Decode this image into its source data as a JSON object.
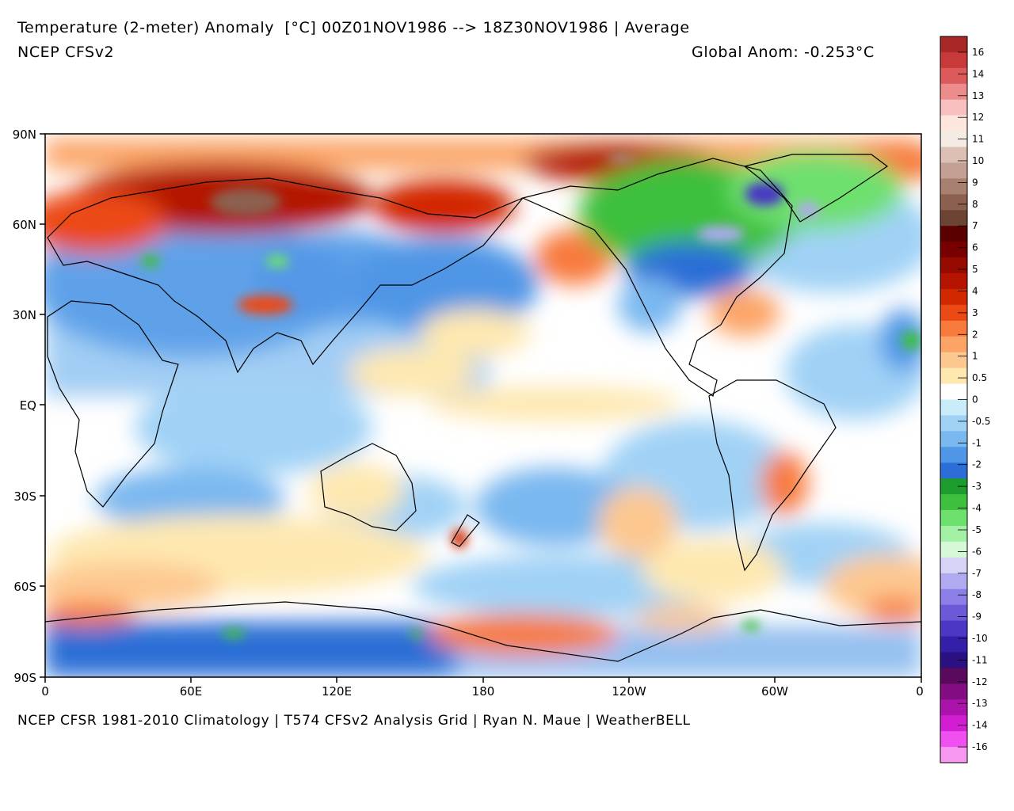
{
  "header": {
    "title": "Temperature (2-meter) Anomaly  [°C] 00Z01NOV1986 --> 18Z30NOV1986 | Average",
    "model": "NCEP CFSv2",
    "global_anom": "Global Anom: -0.253°C"
  },
  "footer": {
    "credit": "NCEP CFSR 1981-2010 Climatology | T574 CFSv2 Analysis Grid | Ryan N. Maue | WeatherBELL"
  },
  "map": {
    "lat_labels": [
      "90N",
      "60N",
      "30N",
      "EQ",
      "30S",
      "60S",
      "90S"
    ],
    "lon_labels": [
      "0",
      "60E",
      "120E",
      "180",
      "120W",
      "60W",
      "0"
    ]
  },
  "colorbar": {
    "labels": [
      "16",
      "14",
      "13",
      "12",
      "11",
      "10",
      "9",
      "8",
      "7",
      "6",
      "5",
      "4",
      "3",
      "2",
      "1",
      "0.5",
      "0",
      "-0.5",
      "-1",
      "-2",
      "-3",
      "-4",
      "-5",
      "-6",
      "-7",
      "-8",
      "-9",
      "-10",
      "-11",
      "-12",
      "-13",
      "-14",
      "-16"
    ],
    "colors": [
      "#a82828",
      "#c83a3a",
      "#dc5a5a",
      "#ec8c8c",
      "#f8c0c0",
      "#fde6dc",
      "#f4ece4",
      "#dcc0b4",
      "#c4a094",
      "#a88070",
      "#8c6050",
      "#6c4434",
      "#5a0000",
      "#780000",
      "#960a00",
      "#b41400",
      "#d22800",
      "#ec4a14",
      "#f87a3c",
      "#fca466",
      "#fdc890",
      "#fee8b0",
      "#ffffff",
      "#c8ecfa",
      "#a0d2f6",
      "#7ab8f0",
      "#5096e6",
      "#2c6ed6",
      "#1c9c2c",
      "#3ec03e",
      "#6ee06e",
      "#a4f0a4",
      "#d6f8d6",
      "#d8d4f8",
      "#b0aaf0",
      "#8c80e8",
      "#6a5ad8",
      "#4a38c4",
      "#3420a8",
      "#2a1080",
      "#5a0a5a",
      "#820c82",
      "#aa14aa",
      "#d21ed2",
      "#f050f0",
      "#f898f0"
    ]
  }
}
